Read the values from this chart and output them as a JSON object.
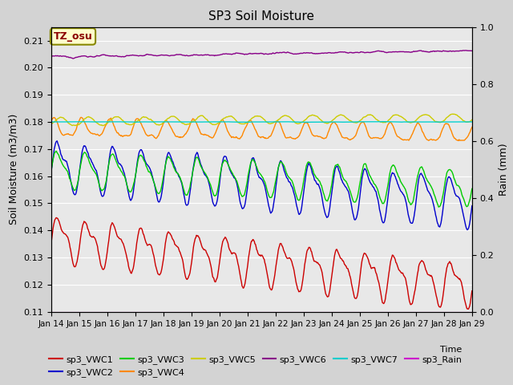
{
  "title": "SP3 Soil Moisture",
  "xlabel": "Time",
  "ylabel_left": "Soil Moisture (m3/m3)",
  "ylabel_right": "Rain (mm)",
  "annotation": "TZ_osu",
  "x_ticks": [
    "Jan 14",
    "Jan 15",
    "Jan 16",
    "Jan 17",
    "Jan 18",
    "Jan 19",
    "Jan 20",
    "Jan 21",
    "Jan 22",
    "Jan 23",
    "Jan 24",
    "Jan 25",
    "Jan 26",
    "Jan 27",
    "Jan 28",
    "Jan 29"
  ],
  "ylim_left": [
    0.11,
    0.215
  ],
  "ylim_right": [
    0.0,
    1.0
  ],
  "yticks_left": [
    0.11,
    0.12,
    0.13,
    0.14,
    0.15,
    0.16,
    0.17,
    0.18,
    0.19,
    0.2,
    0.21
  ],
  "yticks_right": [
    0.0,
    0.2,
    0.4,
    0.6,
    0.8,
    1.0
  ],
  "colors": {
    "sp3_VWC1": "#cc0000",
    "sp3_VWC2": "#0000cc",
    "sp3_VWC3": "#00cc00",
    "sp3_VWC4": "#ff8800",
    "sp3_VWC5": "#cccc00",
    "sp3_VWC6": "#880088",
    "sp3_VWC7": "#00cccc",
    "sp3_Rain": "#cc00cc"
  },
  "fig_facecolor": "#d3d3d3",
  "ax_facecolor": "#e8e8e8",
  "grid_color": "#ffffff",
  "annotation_facecolor": "#ffffcc",
  "annotation_edgecolor": "#888800",
  "annotation_textcolor": "#8b0000",
  "legend_entries_row1": [
    "sp3_VWC1",
    "sp3_VWC2",
    "sp3_VWC3",
    "sp3_VWC4",
    "sp3_VWC5",
    "sp3_VWC6"
  ],
  "legend_entries_row2": [
    "sp3_VWC7",
    "sp3_Rain"
  ]
}
